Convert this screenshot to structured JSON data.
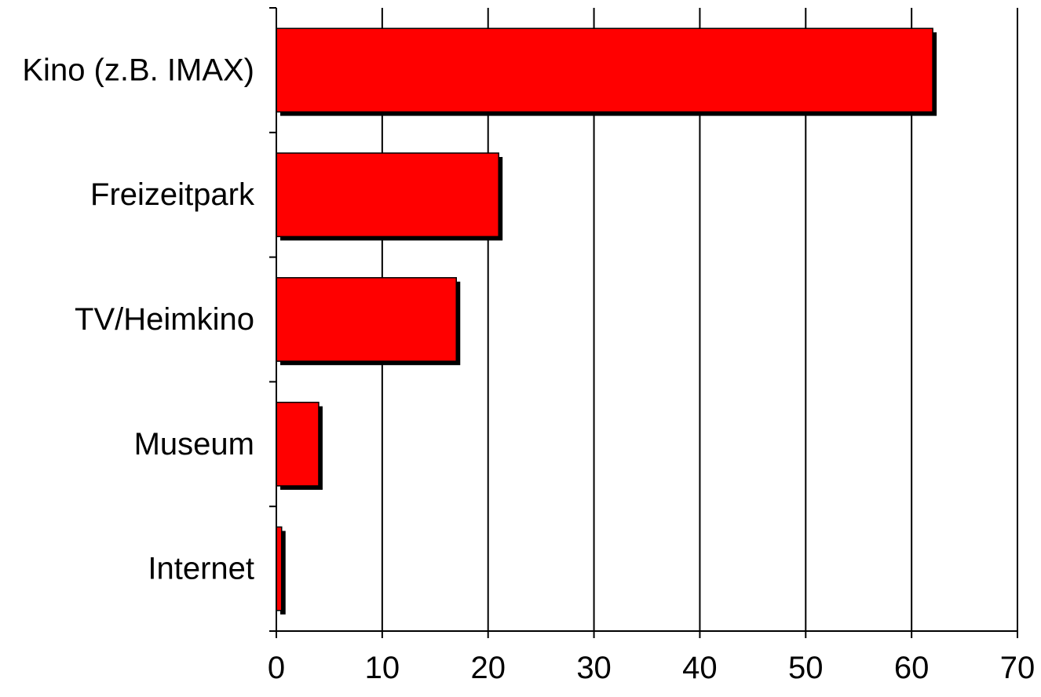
{
  "chart_data": {
    "type": "bar",
    "orientation": "horizontal",
    "categories": [
      "Kino (z.B. IMAX)",
      "Freizeitpark",
      "TV/Heimkino",
      "Museum",
      "Internet"
    ],
    "values": [
      62,
      21,
      17,
      4,
      0.5
    ],
    "xlim": [
      0,
      70
    ],
    "x_ticks": [
      0,
      10,
      20,
      30,
      40,
      50,
      60,
      70
    ],
    "grid": "vertical",
    "legend": "none",
    "bar_color": "#ff0000",
    "shadow_color": "#000000"
  }
}
